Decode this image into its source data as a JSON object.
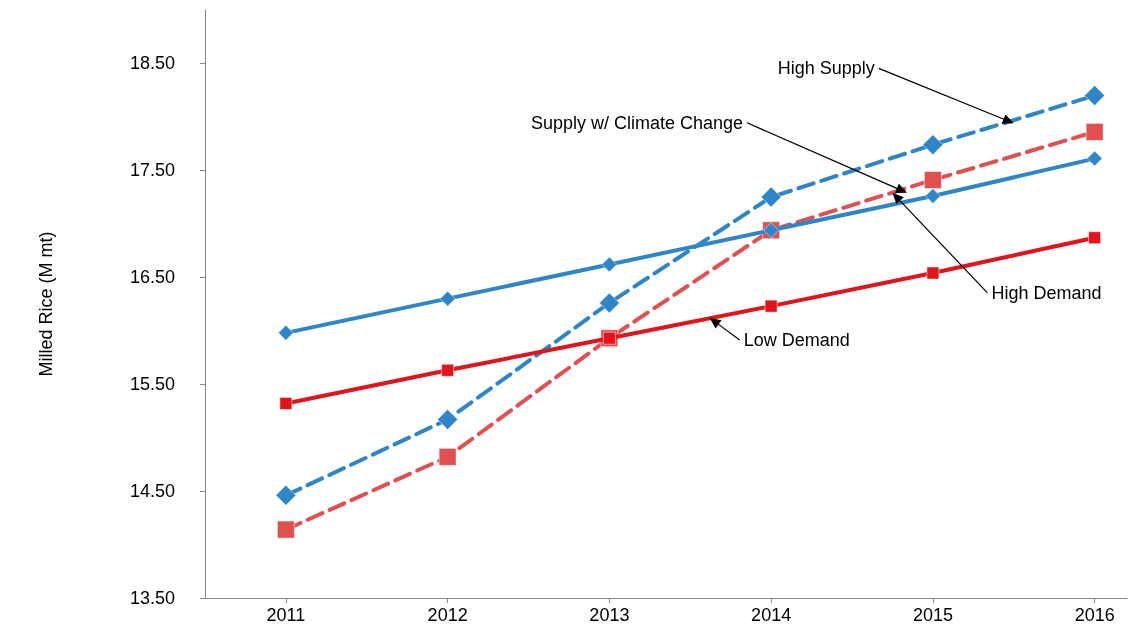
{
  "chart_data": {
    "type": "line",
    "ylabel": "Milled Rice (M mt)",
    "x": [
      2011,
      2012,
      2013,
      2014,
      2015,
      2016
    ],
    "xlim": [
      2010.5,
      2016.2
    ],
    "xticks": [
      2011,
      2012,
      2013,
      2014,
      2015,
      2016
    ],
    "ylim": [
      13.5,
      19.0
    ],
    "yticks": [
      {
        "value": 13.5,
        "label": "13.50"
      },
      {
        "value": 14.5,
        "label": "14.50"
      },
      {
        "value": 15.5,
        "label": "15.50"
      },
      {
        "value": 16.5,
        "label": "16.50"
      },
      {
        "value": 17.5,
        "label": "17.50"
      },
      {
        "value": 18.5,
        "label": "18.50"
      }
    ],
    "grid": false,
    "series": [
      {
        "color": "#2e86c8",
        "marker": "diamond",
        "line_style": "solid",
        "values": [
          15.98,
          16.3,
          16.62,
          16.94,
          17.26,
          17.61
        ]
      },
      {
        "color": "#e0141a",
        "marker": "square",
        "line_style": "solid",
        "values": [
          15.32,
          15.63,
          15.93,
          16.23,
          16.54,
          16.87
        ]
      },
      {
        "color": "#2e86c8",
        "marker": "diamond",
        "line_style": "dashed",
        "values": [
          14.46,
          15.17,
          16.26,
          17.25,
          17.74,
          18.2
        ]
      },
      {
        "color": "#e05050",
        "marker": "square",
        "line_style": "dashed",
        "values": [
          14.14,
          14.82,
          15.93,
          16.94,
          17.41,
          17.86
        ]
      }
    ],
    "annotations": [
      {
        "text": "High Supply",
        "x": 2015.5,
        "y": 17.94
      },
      {
        "text": "Supply w/ Climate Change",
        "x": 2014.84,
        "y": 17.29
      },
      {
        "text": "High Demand",
        "x": 2014.75,
        "y": 17.29
      },
      {
        "text": "Low Demand",
        "x": 2013.62,
        "y": 16.12
      }
    ]
  }
}
